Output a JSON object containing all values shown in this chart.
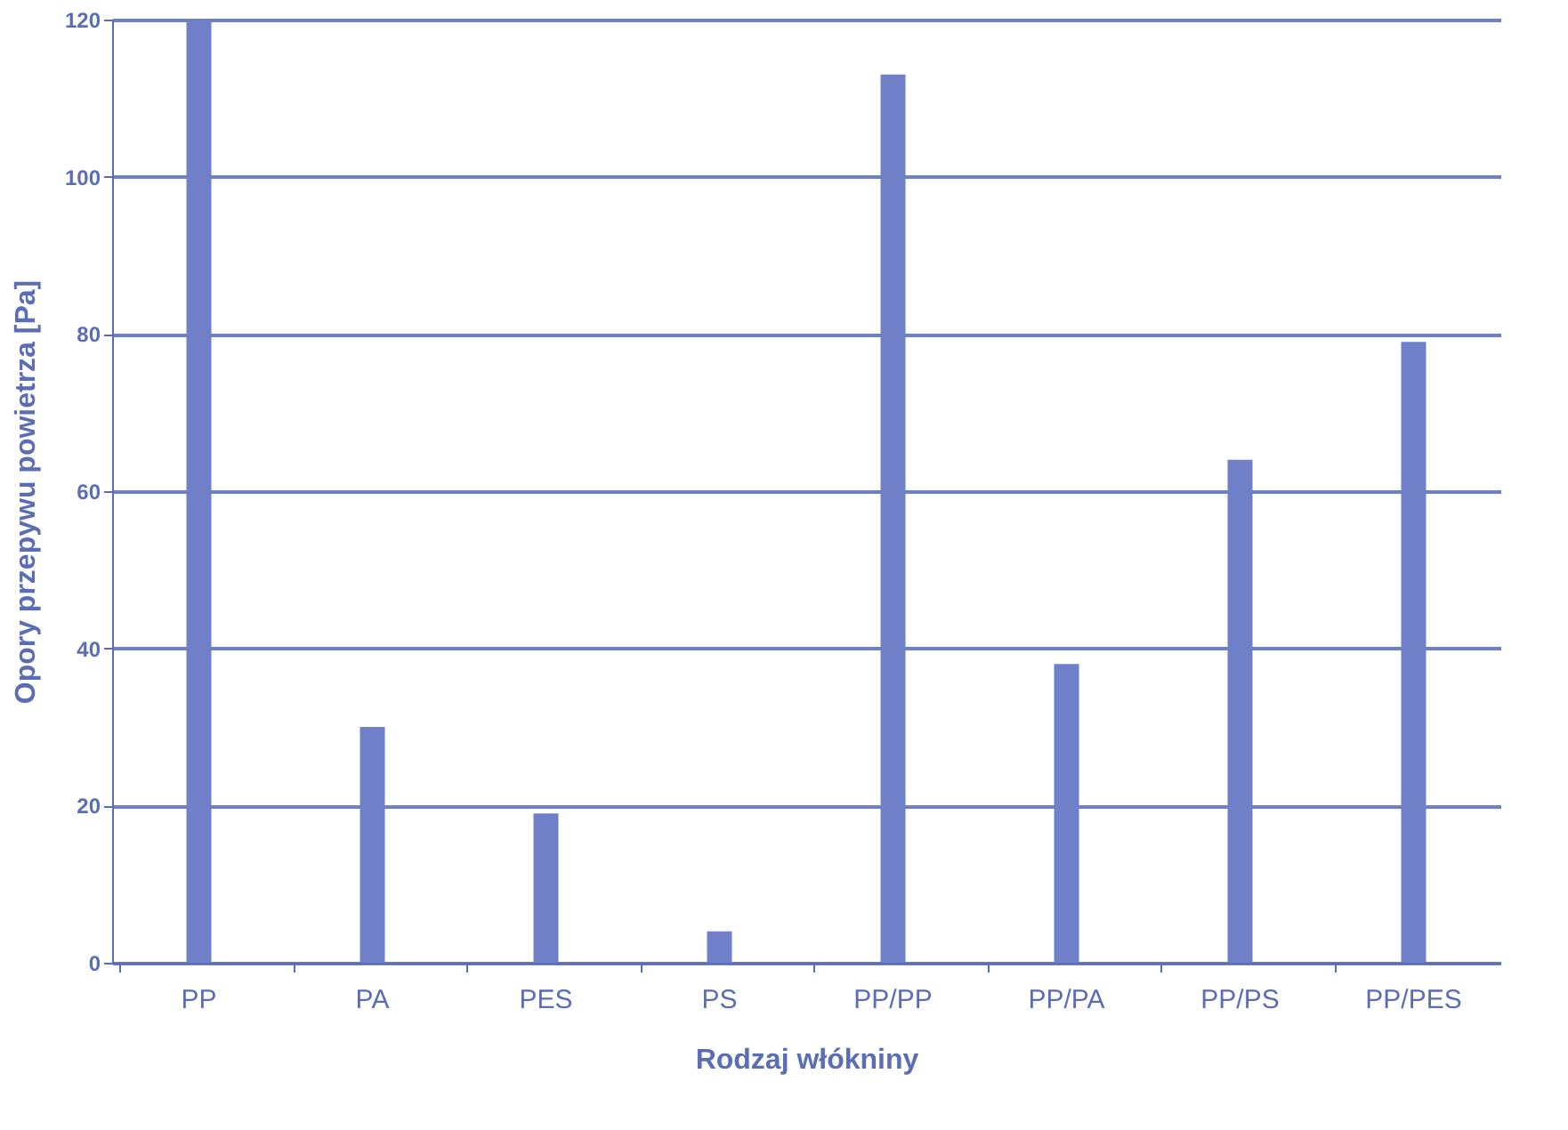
{
  "chart_data": {
    "type": "bar",
    "xlabel": "Rodzaj włókniny",
    "ylabel": "Opory przepywu powietrza [Pa]",
    "categories": [
      "PP",
      "PA",
      "PES",
      "PS",
      "PP/PP",
      "PP/PA",
      "PP/PS",
      "PP/PES"
    ],
    "values": [
      120,
      30,
      19,
      4,
      113,
      38,
      64,
      79
    ],
    "color": "#6f80c8",
    "ylim": [
      0,
      120
    ],
    "yticks": [
      0,
      20,
      40,
      60,
      80,
      100,
      120
    ],
    "grid": "y"
  }
}
